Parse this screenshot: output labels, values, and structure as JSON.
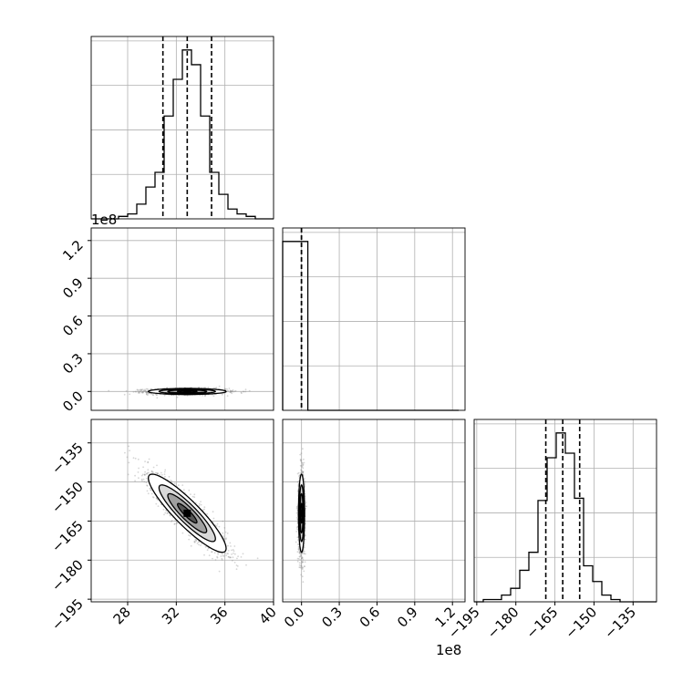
{
  "chart_data": {
    "type": "corner",
    "title": "",
    "offset_labels": {
      "panel_1_y": "1e8",
      "panel_4_x": "1e8"
    },
    "variables": [
      {
        "range": [
          25,
          40
        ],
        "ticks": [
          28,
          32,
          36,
          40
        ],
        "quantiles": [
          30.9,
          32.9,
          34.9
        ]
      },
      {
        "range": [
          -0.15,
          1.3
        ],
        "ticks": [
          0.0,
          0.3,
          0.6,
          0.9,
          1.2
        ],
        "quantiles": [
          0.0,
          0.0,
          0.0
        ]
      },
      {
        "range": [
          -196,
          -126
        ],
        "ticks": [
          -195,
          -180,
          -165,
          -150,
          -135
        ],
        "quantiles": [
          -168.5,
          -162.0,
          -155.5
        ]
      }
    ],
    "histograms": [
      {
        "variable": 0,
        "bin_edges": [
          25.0,
          25.75,
          26.5,
          27.25,
          28.0,
          28.75,
          29.5,
          30.25,
          31.0,
          31.75,
          32.5,
          33.25,
          34.0,
          34.75,
          35.5,
          36.25,
          37.0,
          37.75,
          38.5,
          39.25,
          40.0
        ],
        "counts": [
          0,
          0,
          0,
          1,
          2,
          6,
          13,
          19,
          42,
          57,
          69,
          63,
          42,
          19,
          10,
          4,
          2,
          1,
          0,
          0
        ]
      },
      {
        "variable": 1,
        "bin_edges": [
          -0.15,
          0.05,
          0.25,
          0.45,
          0.65,
          0.85,
          1.05,
          1.25
        ],
        "counts": [
          100,
          0,
          0,
          0,
          0,
          0,
          0
        ]
      },
      {
        "variable": 2,
        "bin_edges": [
          -196,
          -192.5,
          -189,
          -185.5,
          -182,
          -178.5,
          -175,
          -171.5,
          -168,
          -164.5,
          -161,
          -157.5,
          -154,
          -150.5,
          -147,
          -143.5,
          -140,
          -136.5,
          -133,
          -129.5,
          -126
        ],
        "counts": [
          0,
          1,
          1,
          3,
          6,
          14,
          22,
          45,
          64,
          75,
          66,
          46,
          16,
          9,
          3,
          1,
          0,
          0,
          0,
          0
        ]
      }
    ],
    "scatter_panels": [
      {
        "x_variable": 0,
        "y_variable": 1,
        "center": [
          32.9,
          0.0
        ],
        "spread": [
          1.6,
          0.012
        ],
        "correlation": 0.0,
        "contour_levels": [
          "1-sigma",
          "2-sigma"
        ]
      },
      {
        "x_variable": 0,
        "y_variable": 2,
        "center": [
          32.9,
          -162.0
        ],
        "spread": [
          1.6,
          7.5
        ],
        "correlation": -0.9,
        "contour_levels": [
          "1-sigma",
          "2-sigma"
        ]
      },
      {
        "x_variable": 1,
        "y_variable": 2,
        "center": [
          0.0,
          -162.0
        ],
        "spread": [
          0.012,
          7.5
        ],
        "correlation": 0.0,
        "contour_levels": [
          "1-sigma",
          "2-sigma"
        ]
      }
    ],
    "grid": true,
    "legend": "none"
  }
}
